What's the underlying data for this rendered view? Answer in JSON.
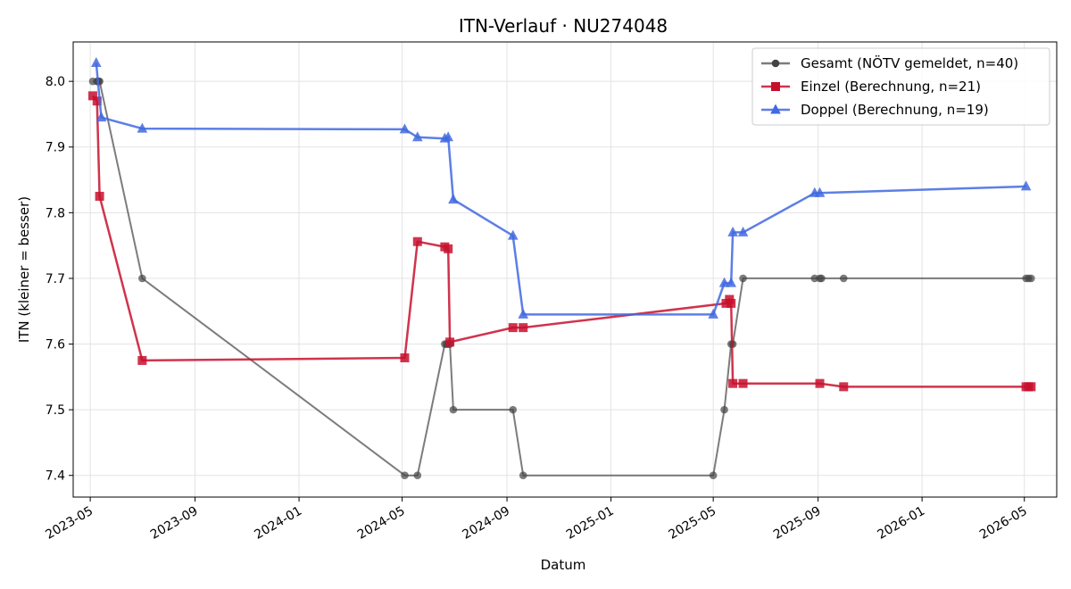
{
  "chart_data": {
    "type": "line",
    "title": "ITN-Verlauf · NU274048",
    "xlabel": "Datum",
    "ylabel": "ITN  (kleiner = besser)",
    "x_axis_type": "date",
    "xlim": [
      "2023-04-11",
      "2026-06-08"
    ],
    "ylim": [
      7.367,
      8.06
    ],
    "x_ticks": [
      "2023-05-01",
      "2023-09-01",
      "2024-01-01",
      "2024-05-01",
      "2024-09-01",
      "2025-01-01",
      "2025-05-01",
      "2025-09-01",
      "2026-01-01",
      "2026-05-01"
    ],
    "x_tick_labels": [
      "2023-05",
      "2023-09",
      "2024-01",
      "2024-05",
      "2024-09",
      "2025-01",
      "2025-05",
      "2025-09",
      "2026-01",
      "2026-05"
    ],
    "y_ticks": [
      7.4,
      7.5,
      7.6,
      7.7,
      7.8,
      7.9,
      8.0
    ],
    "y_tick_labels": [
      "7.4",
      "7.5",
      "7.6",
      "7.7",
      "7.8",
      "7.9",
      "8.0"
    ],
    "grid": true,
    "legend_position": "top-right",
    "series": [
      {
        "name": "Gesamt (NÖTV gemeldet, n=40)",
        "color": "#444444",
        "marker": "circle",
        "points": [
          [
            "2023-05-04",
            8.0
          ],
          [
            "2023-05-09",
            8.0
          ],
          [
            "2023-05-10",
            8.0
          ],
          [
            "2023-05-11",
            8.0
          ],
          [
            "2023-05-12",
            8.0
          ],
          [
            "2023-07-01",
            7.7
          ],
          [
            "2024-05-04",
            7.4
          ],
          [
            "2024-05-19",
            7.4
          ],
          [
            "2024-06-20",
            7.6
          ],
          [
            "2024-06-22",
            7.6
          ],
          [
            "2024-06-24",
            7.6
          ],
          [
            "2024-06-26",
            7.6
          ],
          [
            "2024-06-30",
            7.5
          ],
          [
            "2024-09-08",
            7.5
          ],
          [
            "2024-09-20",
            7.4
          ],
          [
            "2025-05-01",
            7.4
          ],
          [
            "2025-05-14",
            7.5
          ],
          [
            "2025-05-22",
            7.6
          ],
          [
            "2025-05-24",
            7.6
          ],
          [
            "2025-06-05",
            7.7
          ],
          [
            "2025-08-28",
            7.7
          ],
          [
            "2025-09-03",
            7.7
          ],
          [
            "2025-09-05",
            7.7
          ],
          [
            "2025-10-01",
            7.7
          ],
          [
            "2026-05-03",
            7.7
          ],
          [
            "2026-05-06",
            7.7
          ],
          [
            "2026-05-09",
            7.7
          ]
        ]
      },
      {
        "name": "Einzel (Berechnung, n=21)",
        "color": "#c8102e",
        "marker": "square",
        "points": [
          [
            "2023-05-04",
            7.978
          ],
          [
            "2023-05-09",
            7.97
          ],
          [
            "2023-05-12",
            7.825
          ],
          [
            "2023-07-01",
            7.575
          ],
          [
            "2024-05-04",
            7.579
          ],
          [
            "2024-05-19",
            7.756
          ],
          [
            "2024-06-20",
            7.748
          ],
          [
            "2024-06-24",
            7.745
          ],
          [
            "2024-06-26",
            7.603
          ],
          [
            "2024-09-08",
            7.625
          ],
          [
            "2024-09-20",
            7.625
          ],
          [
            "2025-05-16",
            7.662
          ],
          [
            "2025-05-20",
            7.668
          ],
          [
            "2025-05-22",
            7.662
          ],
          [
            "2025-05-24",
            7.54
          ],
          [
            "2025-06-05",
            7.54
          ],
          [
            "2025-09-03",
            7.54
          ],
          [
            "2025-10-01",
            7.535
          ],
          [
            "2026-05-03",
            7.535
          ],
          [
            "2026-05-06",
            7.535
          ],
          [
            "2026-05-09",
            7.535
          ]
        ]
      },
      {
        "name": "Doppel (Berechnung, n=19)",
        "color": "#4169e1",
        "marker": "triangle",
        "points": [
          [
            "2023-05-08",
            8.028
          ],
          [
            "2023-05-14",
            7.945
          ],
          [
            "2023-07-01",
            7.928
          ],
          [
            "2024-05-04",
            7.927
          ],
          [
            "2024-05-19",
            7.915
          ],
          [
            "2024-06-20",
            7.913
          ],
          [
            "2024-06-24",
            7.915
          ],
          [
            "2024-06-30",
            7.82
          ],
          [
            "2024-09-08",
            7.765
          ],
          [
            "2024-09-20",
            7.645
          ],
          [
            "2025-05-01",
            7.645
          ],
          [
            "2025-05-14",
            7.693
          ],
          [
            "2025-05-22",
            7.693
          ],
          [
            "2025-05-24",
            7.77
          ],
          [
            "2025-06-05",
            7.77
          ],
          [
            "2025-08-28",
            7.83
          ],
          [
            "2025-09-03",
            7.83
          ],
          [
            "2026-05-03",
            7.84
          ]
        ]
      }
    ]
  }
}
